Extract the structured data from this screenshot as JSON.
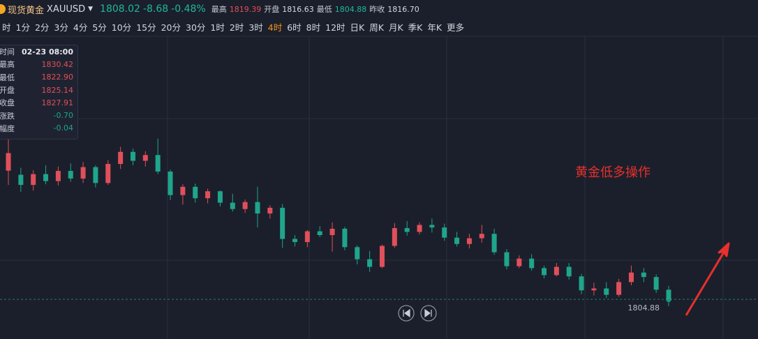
{
  "header": {
    "name": "现货黄金",
    "symbol": "XAUUSD",
    "price": "1808.02",
    "change": "-8.68",
    "change_pct": "-0.48%",
    "high_label": "最高",
    "high": "1819.39",
    "open_label": "开盘",
    "open": "1816.63",
    "low_label": "最低",
    "low": "1804.88",
    "prev_label": "昨收",
    "prev": "1816.70"
  },
  "timeframes": [
    "时",
    "1分",
    "2分",
    "3分",
    "4分",
    "5分",
    "10分",
    "15分",
    "20分",
    "30分",
    "1时",
    "2时",
    "3时",
    "4时",
    "6时",
    "8时",
    "12时",
    "日K",
    "周K",
    "月K",
    "季K",
    "年K",
    "更多"
  ],
  "active_timeframe": "4时",
  "info_panel": [
    [
      "时间",
      "02-23 08:00"
    ],
    [
      "最高",
      "1830.42"
    ],
    [
      "最低",
      "1822.90"
    ],
    [
      "开盘",
      "1825.14"
    ],
    [
      "收盘",
      "1827.91"
    ],
    [
      "涨跌",
      "-0.70"
    ],
    [
      "幅度",
      "-0.04"
    ]
  ],
  "chart_data": {
    "type": "candlestick",
    "up_color": "#e0505a",
    "down_color": "#1fa58c",
    "ylim": [
      1799.3,
      1846.3
    ],
    "annotation": "黄金低多操作",
    "candles": [
      [
        1825.14,
        1830.42,
        1822.9,
        1827.91
      ],
      [
        1824.5,
        1825.6,
        1821.8,
        1822.9
      ],
      [
        1822.9,
        1825.2,
        1822.0,
        1824.6
      ],
      [
        1824.6,
        1826.0,
        1823.0,
        1823.5
      ],
      [
        1823.5,
        1825.8,
        1822.8,
        1825.1
      ],
      [
        1825.1,
        1826.3,
        1823.4,
        1823.9
      ],
      [
        1823.9,
        1826.5,
        1823.2,
        1825.7
      ],
      [
        1825.7,
        1826.0,
        1822.5,
        1823.2
      ],
      [
        1823.2,
        1826.8,
        1822.9,
        1826.2
      ],
      [
        1826.2,
        1828.9,
        1825.4,
        1828.1
      ],
      [
        1828.1,
        1828.6,
        1826.0,
        1826.7
      ],
      [
        1826.7,
        1828.2,
        1825.8,
        1827.6
      ],
      [
        1827.6,
        1830.2,
        1824.6,
        1825.0
      ],
      [
        1825.0,
        1825.3,
        1820.5,
        1821.3
      ],
      [
        1821.3,
        1823.0,
        1819.8,
        1822.6
      ],
      [
        1822.6,
        1823.1,
        1820.1,
        1820.8
      ],
      [
        1820.8,
        1822.3,
        1820.0,
        1821.9
      ],
      [
        1821.9,
        1822.0,
        1819.5,
        1820.1
      ],
      [
        1820.1,
        1821.5,
        1818.7,
        1819.1
      ],
      [
        1819.1,
        1820.6,
        1818.5,
        1820.2
      ],
      [
        1820.2,
        1822.6,
        1816.2,
        1818.4
      ],
      [
        1818.4,
        1819.7,
        1817.6,
        1819.3
      ],
      [
        1819.3,
        1819.9,
        1813.0,
        1814.4
      ],
      [
        1814.4,
        1815.0,
        1813.2,
        1813.9
      ],
      [
        1813.9,
        1815.8,
        1813.1,
        1815.6
      ],
      [
        1815.6,
        1816.4,
        1814.7,
        1815.0
      ],
      [
        1815.0,
        1817.0,
        1812.4,
        1816.0
      ],
      [
        1816.0,
        1816.3,
        1812.6,
        1813.1
      ],
      [
        1813.1,
        1813.4,
        1810.4,
        1811.2
      ],
      [
        1811.2,
        1812.5,
        1809.2,
        1810.0
      ],
      [
        1810.0,
        1813.5,
        1809.8,
        1813.3
      ],
      [
        1813.3,
        1816.9,
        1813.0,
        1816.1
      ],
      [
        1816.1,
        1817.2,
        1814.9,
        1815.5
      ],
      [
        1815.5,
        1817.0,
        1815.1,
        1816.6
      ],
      [
        1816.6,
        1817.6,
        1815.4,
        1816.2
      ],
      [
        1816.2,
        1816.8,
        1814.1,
        1814.6
      ],
      [
        1814.6,
        1815.5,
        1813.2,
        1813.6
      ],
      [
        1813.6,
        1815.2,
        1812.9,
        1814.5
      ],
      [
        1814.5,
        1816.6,
        1813.8,
        1815.2
      ],
      [
        1815.2,
        1816.0,
        1811.9,
        1812.3
      ],
      [
        1812.3,
        1812.8,
        1809.6,
        1810.1
      ],
      [
        1810.1,
        1811.8,
        1809.8,
        1811.3
      ],
      [
        1811.3,
        1812.0,
        1809.4,
        1809.8
      ],
      [
        1809.8,
        1810.2,
        1808.2,
        1808.7
      ],
      [
        1808.7,
        1810.6,
        1808.5,
        1810.0
      ],
      [
        1810.0,
        1810.6,
        1808.0,
        1808.5
      ],
      [
        1808.5,
        1808.9,
        1805.7,
        1806.3
      ],
      [
        1806.3,
        1807.5,
        1805.5,
        1806.6
      ],
      [
        1806.6,
        1807.6,
        1805.1,
        1805.6
      ],
      [
        1805.6,
        1808.1,
        1805.3,
        1807.6
      ],
      [
        1807.6,
        1810.2,
        1807.1,
        1809.1
      ],
      [
        1809.1,
        1809.8,
        1807.6,
        1808.4
      ],
      [
        1808.4,
        1808.8,
        1805.9,
        1806.4
      ],
      [
        1806.4,
        1807.0,
        1803.8,
        1804.88
      ]
    ]
  }
}
